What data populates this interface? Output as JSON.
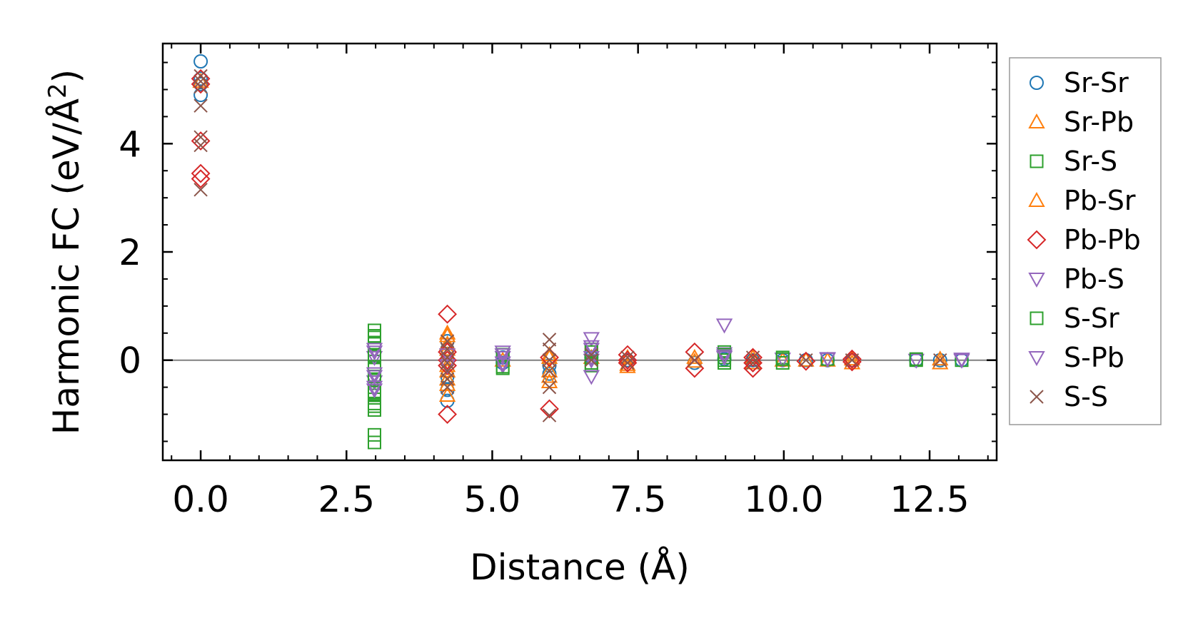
{
  "chart_data": {
    "type": "scatter",
    "xlabel": "Distance (Å)",
    "ylabel_main": "Harmonic FC (eV/Å",
    "ylabel_sup": "2",
    "ylabel_close": ")",
    "xlim": [
      -0.65,
      13.65
    ],
    "ylim": [
      -1.85,
      5.85
    ],
    "xticks": [
      0.0,
      2.5,
      5.0,
      7.5,
      10.0,
      12.5
    ],
    "xtick_labels": [
      "0.0",
      "2.5",
      "5.0",
      "7.5",
      "10.0",
      "12.5"
    ],
    "yticks": [
      0,
      2,
      4
    ],
    "ytick_labels": [
      "0",
      "2",
      "4"
    ],
    "grid": false,
    "zero_line": true,
    "legend_position": "outside-right",
    "series": [
      {
        "name": "Sr-Sr",
        "marker": "circle",
        "color": "#1f77b4",
        "points": [
          [
            0,
            5.52
          ],
          [
            0,
            5.2
          ],
          [
            0,
            5.1
          ],
          [
            0,
            4.9
          ],
          [
            4.23,
            0.35
          ],
          [
            4.23,
            0.2
          ],
          [
            4.23,
            -0.3
          ],
          [
            4.23,
            -0.55
          ],
          [
            4.23,
            -0.75
          ],
          [
            5.18,
            0.05
          ],
          [
            5.18,
            -0.05
          ],
          [
            5.98,
            -0.1
          ],
          [
            5.98,
            -0.25
          ],
          [
            6.7,
            0.05
          ],
          [
            7.32,
            0
          ],
          [
            8.47,
            -0.05
          ],
          [
            8.98,
            0.02
          ],
          [
            9.47,
            0
          ],
          [
            9.98,
            0
          ],
          [
            10.38,
            0
          ],
          [
            10.75,
            0
          ],
          [
            11.17,
            0
          ],
          [
            12.27,
            0
          ],
          [
            12.68,
            0
          ],
          [
            13.05,
            0
          ]
        ]
      },
      {
        "name": "Sr-Pb",
        "marker": "triangle-up",
        "color": "#ff7f0e",
        "points": [
          [
            0,
            5.15
          ],
          [
            4.23,
            0.5
          ],
          [
            4.23,
            0.3
          ],
          [
            4.23,
            0.1
          ],
          [
            4.23,
            -0.2
          ],
          [
            4.23,
            -0.45
          ],
          [
            4.23,
            -0.65
          ],
          [
            5.18,
            0
          ],
          [
            5.98,
            0.1
          ],
          [
            5.98,
            -0.3
          ],
          [
            5.98,
            -0.4
          ],
          [
            6.7,
            0.05
          ],
          [
            7.32,
            -0.12
          ],
          [
            8.47,
            0.05
          ],
          [
            9.47,
            -0.05
          ],
          [
            9.98,
            0
          ],
          [
            10.38,
            0
          ],
          [
            10.75,
            0
          ],
          [
            11.17,
            -0.05
          ],
          [
            12.68,
            -0.05
          ]
        ]
      },
      {
        "name": "Sr-S",
        "marker": "square",
        "color": "#2ca02c",
        "points": [
          [
            2.98,
            0.55
          ],
          [
            2.98,
            0.42
          ],
          [
            2.98,
            0.3
          ],
          [
            2.98,
            0.2
          ],
          [
            2.98,
            0.05
          ],
          [
            2.98,
            -0.15
          ],
          [
            2.98,
            -0.35
          ],
          [
            2.98,
            -0.5
          ],
          [
            2.98,
            -0.65
          ],
          [
            2.98,
            -0.8
          ],
          [
            2.98,
            -0.92
          ],
          [
            2.98,
            -1.38
          ],
          [
            2.98,
            -1.52
          ],
          [
            5.18,
            0.1
          ],
          [
            5.18,
            -0.15
          ],
          [
            6.7,
            0.2
          ],
          [
            6.7,
            0.05
          ],
          [
            6.7,
            -0.1
          ],
          [
            8.98,
            0.15
          ],
          [
            8.98,
            0.05
          ],
          [
            8.98,
            -0.05
          ],
          [
            9.98,
            0.05
          ],
          [
            9.98,
            -0.05
          ],
          [
            10.75,
            0.02
          ],
          [
            12.27,
            0
          ],
          [
            13.05,
            0
          ]
        ]
      },
      {
        "name": "Pb-Sr",
        "marker": "triangle-up",
        "color": "#ff7f0e",
        "points": [
          [
            4.23,
            0.45
          ],
          [
            4.23,
            0.2
          ],
          [
            4.23,
            -0.1
          ],
          [
            4.23,
            -0.35
          ],
          [
            5.98,
            0.05
          ],
          [
            5.98,
            -0.2
          ],
          [
            7.32,
            0.05
          ],
          [
            7.32,
            -0.08
          ],
          [
            8.47,
            -0.02
          ],
          [
            9.47,
            0.05
          ],
          [
            11.17,
            0.02
          ],
          [
            12.68,
            0.02
          ]
        ]
      },
      {
        "name": "Pb-Pb",
        "marker": "diamond",
        "color": "#d62728",
        "points": [
          [
            0,
            5.2
          ],
          [
            0,
            5.1
          ],
          [
            0,
            4.05
          ],
          [
            0,
            3.45
          ],
          [
            0,
            3.35
          ],
          [
            4.23,
            0.85
          ],
          [
            4.23,
            0.15
          ],
          [
            4.23,
            0
          ],
          [
            4.23,
            -0.1
          ],
          [
            4.23,
            -1.0
          ],
          [
            5.98,
            0.05
          ],
          [
            5.98,
            -0.9
          ],
          [
            7.32,
            0.1
          ],
          [
            7.32,
            0
          ],
          [
            7.32,
            -0.05
          ],
          [
            8.47,
            0.15
          ],
          [
            8.47,
            -0.15
          ],
          [
            9.47,
            0.05
          ],
          [
            9.47,
            -0.05
          ],
          [
            9.47,
            -0.15
          ],
          [
            10.38,
            -0.02
          ],
          [
            11.17,
            0.02
          ],
          [
            11.17,
            -0.03
          ]
        ]
      },
      {
        "name": "Pb-S",
        "marker": "triangle-down",
        "color": "#9467bd",
        "points": [
          [
            2.98,
            0.2
          ],
          [
            2.98,
            0.05
          ],
          [
            2.98,
            -0.25
          ],
          [
            2.98,
            -0.4
          ],
          [
            2.98,
            -0.55
          ],
          [
            4.23,
            0.1
          ],
          [
            4.23,
            -0.1
          ],
          [
            5.18,
            0.15
          ],
          [
            5.18,
            0.05
          ],
          [
            5.18,
            -0.1
          ],
          [
            6.7,
            0.4
          ],
          [
            6.7,
            0.2
          ],
          [
            6.7,
            0
          ],
          [
            6.7,
            -0.3
          ],
          [
            8.98,
            0.65
          ],
          [
            8.98,
            0.12
          ],
          [
            8.98,
            0.05
          ],
          [
            9.98,
            0.02
          ],
          [
            10.75,
            0.02
          ],
          [
            12.27,
            0
          ],
          [
            13.05,
            0
          ]
        ]
      },
      {
        "name": "S-Sr",
        "marker": "square",
        "color": "#2ca02c",
        "points": [
          [
            2.98,
            0.45
          ],
          [
            2.98,
            0.1
          ],
          [
            2.98,
            -0.3
          ],
          [
            2.98,
            -0.6
          ],
          [
            2.98,
            -0.85
          ],
          [
            5.18,
            0.1
          ],
          [
            5.18,
            -0.12
          ],
          [
            6.7,
            0.15
          ],
          [
            6.7,
            -0.05
          ],
          [
            8.98,
            0.1
          ],
          [
            8.98,
            0
          ],
          [
            9.98,
            0.02
          ],
          [
            12.27,
            0.02
          ]
        ]
      },
      {
        "name": "S-Pb",
        "marker": "triangle-down",
        "color": "#9467bd",
        "points": [
          [
            2.98,
            0.15
          ],
          [
            2.98,
            -0.3
          ],
          [
            2.98,
            -0.5
          ],
          [
            5.18,
            0.1
          ],
          [
            5.18,
            -0.05
          ],
          [
            6.7,
            0.25
          ],
          [
            6.7,
            0.05
          ],
          [
            8.98,
            0.08
          ],
          [
            10.75,
            0.03
          ],
          [
            13.05,
            0.02
          ]
        ]
      },
      {
        "name": "S-S",
        "marker": "x",
        "color": "#8c564b",
        "points": [
          [
            0,
            5.25
          ],
          [
            0,
            5.15
          ],
          [
            0,
            5.05
          ],
          [
            0,
            4.7
          ],
          [
            0,
            4.12
          ],
          [
            0,
            3.97
          ],
          [
            0,
            3.15
          ],
          [
            4.23,
            0.35
          ],
          [
            4.23,
            0.2
          ],
          [
            4.23,
            0.05
          ],
          [
            4.23,
            -0.05
          ],
          [
            4.23,
            -0.2
          ],
          [
            4.23,
            -0.35
          ],
          [
            4.23,
            -0.5
          ],
          [
            5.98,
            0.38
          ],
          [
            5.98,
            0.2
          ],
          [
            5.98,
            0
          ],
          [
            5.98,
            -0.2
          ],
          [
            5.98,
            -0.5
          ],
          [
            5.98,
            -1.02
          ],
          [
            6.7,
            0.1
          ],
          [
            6.7,
            0
          ],
          [
            7.32,
            0.05
          ],
          [
            7.32,
            -0.05
          ],
          [
            8.47,
            0
          ],
          [
            9.47,
            0.05
          ],
          [
            9.47,
            -0.05
          ],
          [
            10.38,
            0
          ],
          [
            11.17,
            0
          ],
          [
            12.68,
            0
          ]
        ]
      }
    ]
  }
}
